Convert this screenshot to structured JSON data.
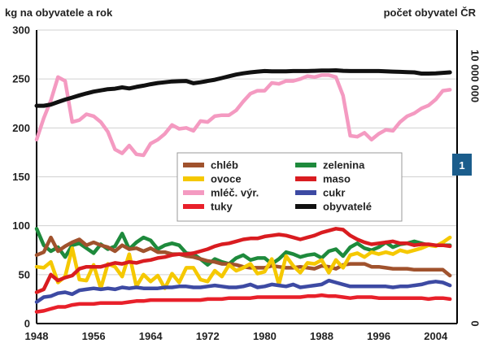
{
  "chart_data": {
    "type": "line",
    "ylabel": "kg na obyvatele a rok",
    "y2label": "počet obyvatel ČR",
    "ylim": [
      0,
      300
    ],
    "yticks": [
      0,
      50,
      100,
      150,
      200,
      250,
      300
    ],
    "xlim": [
      1948,
      2007
    ],
    "xticks": [
      1948,
      1956,
      1964,
      1972,
      1980,
      1988,
      1996,
      2004
    ],
    "y2ticks": [
      {
        "label": "0",
        "value": 0
      },
      {
        "label": "10 000 000",
        "value": 10000000
      }
    ],
    "y2range": [
      0,
      11857000
    ],
    "badge": "1",
    "legend": {
      "columns": 2
    },
    "series": [
      {
        "name": "chléb",
        "color": "#a0522d",
        "axis": "left",
        "x": [
          1948,
          1949,
          1950,
          1951,
          1952,
          1953,
          1954,
          1955,
          1956,
          1957,
          1958,
          1959,
          1960,
          1961,
          1962,
          1963,
          1964,
          1965,
          1966,
          1967,
          1968,
          1969,
          1970,
          1971,
          1972,
          1973,
          1974,
          1975,
          1976,
          1977,
          1978,
          1979,
          1980,
          1981,
          1982,
          1983,
          1984,
          1985,
          1986,
          1987,
          1988,
          1989,
          1990,
          1991,
          1992,
          1993,
          1994,
          1995,
          1996,
          1997,
          1998,
          1999,
          2000,
          2001,
          2002,
          2003,
          2004,
          2005,
          2006
        ],
        "y": [
          70,
          73,
          88,
          74,
          79,
          83,
          86,
          80,
          83,
          80,
          78,
          74,
          80,
          76,
          77,
          74,
          77,
          73,
          73,
          71,
          71,
          69,
          68,
          66,
          64,
          63,
          61,
          61,
          60,
          58,
          57,
          57,
          57,
          59,
          58,
          57,
          57,
          58,
          57,
          56,
          59,
          58,
          56,
          60,
          61,
          61,
          61,
          58,
          58,
          57,
          56,
          56,
          56,
          55,
          55,
          55,
          55,
          55,
          49
        ]
      },
      {
        "name": "ovoce",
        "color": "#f5c800",
        "axis": "left",
        "x": [
          1948,
          1949,
          1950,
          1951,
          1952,
          1953,
          1954,
          1955,
          1956,
          1957,
          1958,
          1959,
          1960,
          1961,
          1962,
          1963,
          1964,
          1965,
          1966,
          1967,
          1968,
          1969,
          1970,
          1971,
          1972,
          1973,
          1974,
          1975,
          1976,
          1977,
          1978,
          1979,
          1980,
          1981,
          1982,
          1983,
          1984,
          1985,
          1986,
          1987,
          1988,
          1989,
          1990,
          1991,
          1992,
          1993,
          1994,
          1995,
          1996,
          1997,
          1998,
          1999,
          2000,
          2001,
          2002,
          2003,
          2004,
          2005,
          2006
        ],
        "y": [
          58,
          57,
          63,
          42,
          48,
          77,
          45,
          44,
          60,
          36,
          61,
          58,
          48,
          71,
          38,
          50,
          43,
          49,
          36,
          51,
          42,
          57,
          57,
          45,
          43,
          54,
          48,
          60,
          54,
          57,
          61,
          51,
          53,
          66,
          40,
          69,
          59,
          52,
          62,
          61,
          65,
          52,
          65,
          57,
          70,
          72,
          68,
          73,
          71,
          73,
          71,
          75,
          73,
          75,
          77,
          80,
          79,
          83,
          88
        ]
      },
      {
        "name": "mléč. výr.",
        "color": "#f49ac1",
        "axis": "left",
        "x": [
          1948,
          1949,
          1950,
          1951,
          1952,
          1953,
          1954,
          1955,
          1956,
          1957,
          1958,
          1959,
          1960,
          1961,
          1962,
          1963,
          1964,
          1965,
          1966,
          1967,
          1968,
          1969,
          1970,
          1971,
          1972,
          1973,
          1974,
          1975,
          1976,
          1977,
          1978,
          1979,
          1980,
          1981,
          1982,
          1983,
          1984,
          1985,
          1986,
          1987,
          1988,
          1989,
          1990,
          1991,
          1992,
          1993,
          1994,
          1995,
          1996,
          1997,
          1998,
          1999,
          2000,
          2001,
          2002,
          2003,
          2004,
          2005,
          2006
        ],
        "y": [
          188,
          210,
          228,
          252,
          248,
          206,
          208,
          214,
          212,
          206,
          196,
          178,
          174,
          182,
          173,
          172,
          184,
          188,
          194,
          203,
          199,
          200,
          197,
          207,
          206,
          212,
          213,
          213,
          218,
          227,
          235,
          238,
          238,
          246,
          245,
          248,
          248,
          250,
          253,
          252,
          254,
          254,
          252,
          233,
          192,
          191,
          195,
          188,
          194,
          198,
          197,
          206,
          212,
          215,
          220,
          223,
          229,
          238,
          239
        ]
      },
      {
        "name": "tuky",
        "color": "#e8202a",
        "axis": "left",
        "x": [
          1948,
          1949,
          1950,
          1951,
          1952,
          1953,
          1954,
          1955,
          1956,
          1957,
          1958,
          1959,
          1960,
          1961,
          1962,
          1963,
          1964,
          1965,
          1966,
          1967,
          1968,
          1969,
          1970,
          1971,
          1972,
          1973,
          1974,
          1975,
          1976,
          1977,
          1978,
          1979,
          1980,
          1981,
          1982,
          1983,
          1984,
          1985,
          1986,
          1987,
          1988,
          1989,
          1990,
          1991,
          1992,
          1993,
          1994,
          1995,
          1996,
          1997,
          1998,
          1999,
          2000,
          2001,
          2002,
          2003,
          2004,
          2005,
          2006
        ],
        "y": [
          12,
          13,
          15,
          17,
          17,
          19,
          20,
          20,
          20,
          21,
          21,
          21,
          21,
          22,
          23,
          23,
          24,
          24,
          24,
          24,
          24,
          24,
          24,
          24,
          25,
          25,
          25,
          26,
          26,
          26,
          26,
          27,
          27,
          27,
          27,
          27,
          27,
          27,
          28,
          28,
          29,
          28,
          28,
          27,
          26,
          27,
          27,
          27,
          26,
          26,
          26,
          26,
          26,
          26,
          26,
          25,
          26,
          26,
          25
        ]
      },
      {
        "name": "zelenina",
        "color": "#1e8a3c",
        "axis": "left",
        "x": [
          1948,
          1949,
          1950,
          1951,
          1952,
          1953,
          1954,
          1955,
          1956,
          1957,
          1958,
          1959,
          1960,
          1961,
          1962,
          1963,
          1964,
          1965,
          1966,
          1967,
          1968,
          1969,
          1970,
          1971,
          1972,
          1973,
          1974,
          1975,
          1976,
          1977,
          1978,
          1979,
          1980,
          1981,
          1982,
          1983,
          1984,
          1985,
          1986,
          1987,
          1988,
          1989,
          1990,
          1991,
          1992,
          1993,
          1994,
          1995,
          1996,
          1997,
          1998,
          1999,
          2000,
          2001,
          2002,
          2003,
          2004,
          2005,
          2006
        ],
        "y": [
          97,
          80,
          74,
          78,
          68,
          80,
          82,
          77,
          72,
          81,
          76,
          79,
          92,
          76,
          83,
          88,
          85,
          76,
          80,
          82,
          80,
          72,
          71,
          66,
          60,
          66,
          63,
          61,
          67,
          70,
          65,
          67,
          67,
          61,
          66,
          73,
          71,
          68,
          70,
          71,
          67,
          74,
          76,
          69,
          78,
          82,
          77,
          75,
          78,
          83,
          78,
          81,
          82,
          84,
          82,
          80,
          80,
          80,
          80
        ]
      },
      {
        "name": "maso",
        "color": "#d91c20",
        "axis": "left",
        "x": [
          1948,
          1949,
          1950,
          1951,
          1952,
          1953,
          1954,
          1955,
          1956,
          1957,
          1958,
          1959,
          1960,
          1961,
          1962,
          1963,
          1964,
          1965,
          1966,
          1967,
          1968,
          1969,
          1970,
          1971,
          1972,
          1973,
          1974,
          1975,
          1976,
          1977,
          1978,
          1979,
          1980,
          1981,
          1982,
          1983,
          1984,
          1985,
          1986,
          1987,
          1988,
          1989,
          1990,
          1991,
          1992,
          1993,
          1994,
          1995,
          1996,
          1997,
          1998,
          1999,
          2000,
          2001,
          2002,
          2003,
          2004,
          2005,
          2006
        ],
        "y": [
          32,
          35,
          50,
          44,
          47,
          49,
          56,
          58,
          58,
          58,
          60,
          62,
          61,
          63,
          62,
          64,
          65,
          67,
          68,
          70,
          71,
          71,
          72,
          74,
          76,
          79,
          81,
          82,
          84,
          86,
          87,
          87,
          89,
          90,
          91,
          90,
          88,
          86,
          88,
          90,
          93,
          95,
          97,
          96,
          90,
          86,
          83,
          81,
          82,
          83,
          84,
          82,
          82,
          80,
          81,
          81,
          80,
          80,
          79
        ]
      },
      {
        "name": "cukr",
        "color": "#3d4aa3",
        "axis": "left",
        "x": [
          1948,
          1949,
          1950,
          1951,
          1952,
          1953,
          1954,
          1955,
          1956,
          1957,
          1958,
          1959,
          1960,
          1961,
          1962,
          1963,
          1964,
          1965,
          1966,
          1967,
          1968,
          1969,
          1970,
          1971,
          1972,
          1973,
          1974,
          1975,
          1976,
          1977,
          1978,
          1979,
          1980,
          1981,
          1982,
          1983,
          1984,
          1985,
          1986,
          1987,
          1988,
          1989,
          1990,
          1991,
          1992,
          1993,
          1994,
          1995,
          1996,
          1997,
          1998,
          1999,
          2000,
          2001,
          2002,
          2003,
          2004,
          2005,
          2006
        ],
        "y": [
          22,
          27,
          28,
          31,
          32,
          30,
          34,
          35,
          36,
          35,
          36,
          35,
          37,
          36,
          37,
          36,
          36,
          36,
          37,
          37,
          38,
          38,
          37,
          37,
          38,
          39,
          38,
          37,
          37,
          38,
          40,
          37,
          38,
          40,
          39,
          38,
          40,
          37,
          38,
          39,
          40,
          44,
          42,
          40,
          38,
          38,
          38,
          38,
          38,
          38,
          37,
          38,
          38,
          39,
          40,
          42,
          43,
          42,
          39
        ]
      },
      {
        "name": "obyvatelé",
        "color": "#111111",
        "axis": "right",
        "x": [
          1948,
          1949,
          1950,
          1951,
          1952,
          1953,
          1954,
          1955,
          1956,
          1957,
          1958,
          1959,
          1960,
          1961,
          1962,
          1963,
          1964,
          1965,
          1966,
          1967,
          1968,
          1969,
          1970,
          1971,
          1972,
          1973,
          1974,
          1975,
          1976,
          1977,
          1978,
          1979,
          1980,
          1981,
          1982,
          1983,
          1984,
          1985,
          1986,
          1987,
          1988,
          1989,
          1990,
          1991,
          1992,
          1993,
          1994,
          1995,
          1996,
          1997,
          1998,
          1999,
          2000,
          2001,
          2002,
          2003,
          2004,
          2005,
          2006
        ],
        "y": [
          8800000,
          8800000,
          8850000,
          8950000,
          9050000,
          9130000,
          9220000,
          9300000,
          9370000,
          9420000,
          9470000,
          9490000,
          9540000,
          9500000,
          9560000,
          9610000,
          9670000,
          9720000,
          9750000,
          9780000,
          9790000,
          9800000,
          9710000,
          9750000,
          9800000,
          9850000,
          9920000,
          9990000,
          10060000,
          10110000,
          10150000,
          10180000,
          10200000,
          10190000,
          10190000,
          10190000,
          10200000,
          10200000,
          10200000,
          10210000,
          10220000,
          10220000,
          10230000,
          10210000,
          10200000,
          10200000,
          10200000,
          10200000,
          10200000,
          10190000,
          10180000,
          10170000,
          10160000,
          10150000,
          10100000,
          10100000,
          10110000,
          10130000,
          10150000
        ]
      }
    ]
  }
}
